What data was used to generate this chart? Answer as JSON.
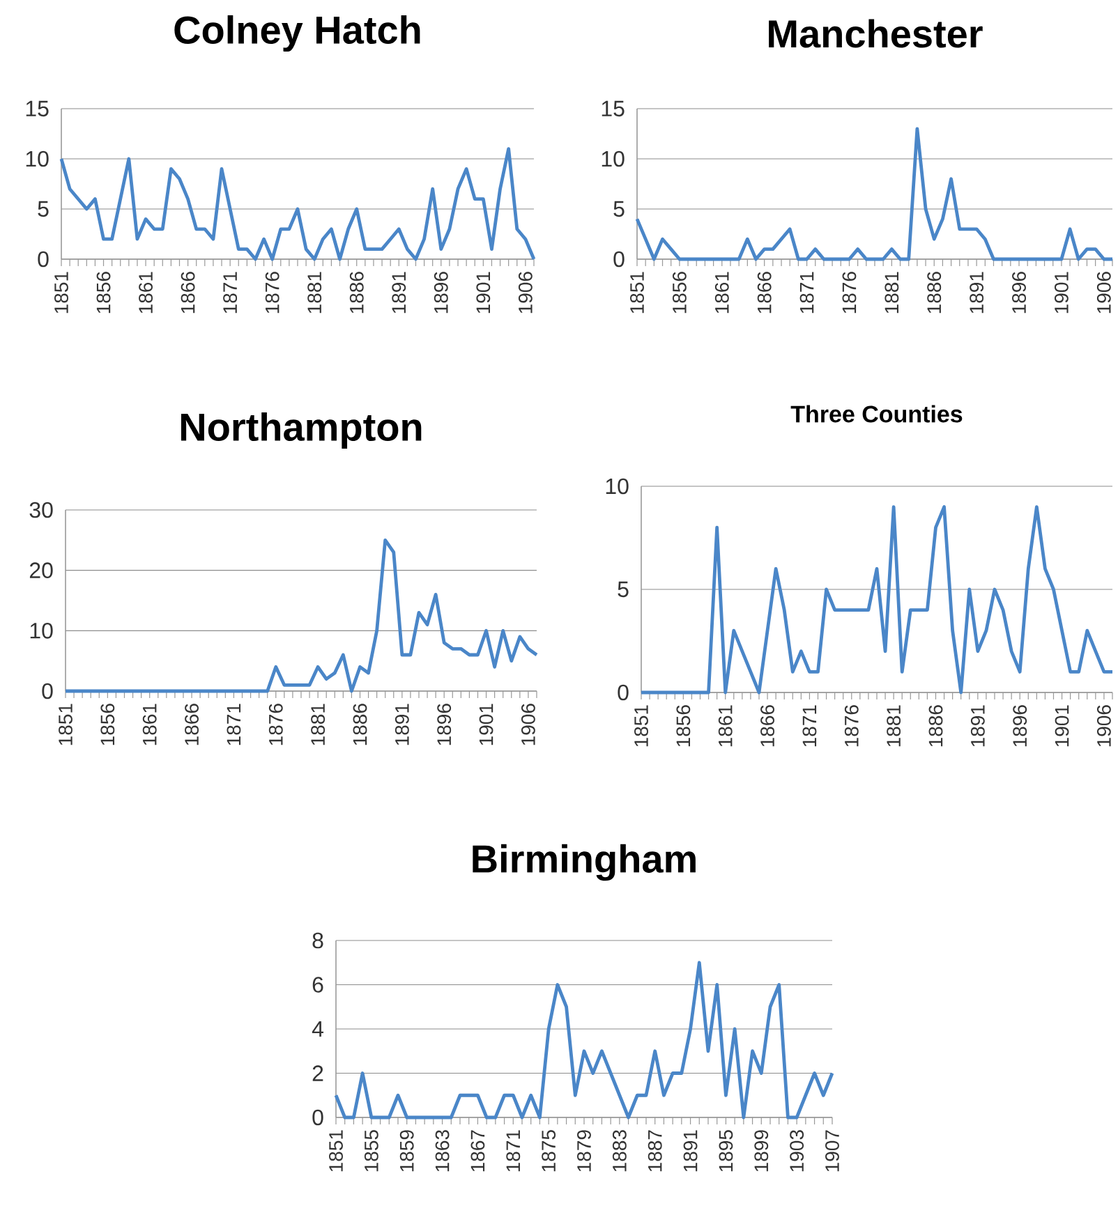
{
  "chart_data": [
    {
      "type": "line",
      "title": "Colney Hatch",
      "color": "#4a86c8",
      "grid": "y",
      "ylim": [
        0,
        15
      ],
      "yticks": [
        0,
        5,
        10,
        15
      ],
      "categories": [
        "1851",
        null,
        null,
        null,
        null,
        "1856",
        null,
        null,
        null,
        null,
        "1861",
        null,
        null,
        null,
        null,
        "1866",
        null,
        null,
        null,
        null,
        "1871",
        null,
        null,
        null,
        null,
        "1876",
        null,
        null,
        null,
        null,
        "1881",
        null,
        null,
        null,
        null,
        "1886",
        null,
        null,
        null,
        null,
        "1891",
        null,
        null,
        null,
        null,
        "1896",
        null,
        null,
        null,
        null,
        "1901",
        null,
        null,
        null,
        null,
        "1906",
        null
      ],
      "values": [
        10,
        7,
        6,
        5,
        6,
        2,
        2,
        6,
        10,
        2,
        4,
        3,
        3,
        9,
        8,
        6,
        3,
        3,
        2,
        9,
        5,
        1,
        1,
        0,
        2,
        0,
        3,
        3,
        5,
        1,
        0,
        2,
        3,
        0,
        3,
        5,
        1,
        1,
        1,
        2,
        3,
        1,
        0,
        2,
        7,
        1,
        3,
        7,
        9,
        6,
        6,
        1,
        7,
        11,
        3,
        2,
        0
      ]
    },
    {
      "type": "line",
      "title": "Manchester",
      "color": "#4a86c8",
      "grid": "y",
      "ylim": [
        0,
        15
      ],
      "yticks": [
        0,
        5,
        10,
        15
      ],
      "categories": [
        "1851",
        null,
        null,
        null,
        null,
        "1856",
        null,
        null,
        null,
        null,
        "1861",
        null,
        null,
        null,
        null,
        "1866",
        null,
        null,
        null,
        null,
        "1871",
        null,
        null,
        null,
        null,
        "1876",
        null,
        null,
        null,
        null,
        "1881",
        null,
        null,
        null,
        null,
        "1886",
        null,
        null,
        null,
        null,
        "1891",
        null,
        null,
        null,
        null,
        "1896",
        null,
        null,
        null,
        null,
        "1901",
        null,
        null,
        null,
        null,
        "1906",
        null
      ],
      "values": [
        4,
        2,
        0,
        2,
        1,
        0,
        0,
        0,
        0,
        0,
        0,
        0,
        0,
        2,
        0,
        1,
        1,
        2,
        3,
        0,
        0,
        1,
        0,
        0,
        0,
        0,
        1,
        0,
        0,
        0,
        1,
        0,
        0,
        13,
        5,
        2,
        4,
        8,
        3,
        3,
        3,
        2,
        0,
        0,
        0,
        0,
        0,
        0,
        0,
        0,
        0,
        3,
        0,
        1,
        1,
        0,
        0
      ]
    },
    {
      "type": "line",
      "title": "Northampton",
      "color": "#4a86c8",
      "grid": "y",
      "ylim": [
        0,
        30
      ],
      "yticks": [
        0,
        10,
        20,
        30
      ],
      "categories": [
        "1851",
        null,
        null,
        null,
        null,
        "1856",
        null,
        null,
        null,
        null,
        "1861",
        null,
        null,
        null,
        null,
        "1866",
        null,
        null,
        null,
        null,
        "1871",
        null,
        null,
        null,
        null,
        "1876",
        null,
        null,
        null,
        null,
        "1881",
        null,
        null,
        null,
        null,
        "1886",
        null,
        null,
        null,
        null,
        "1891",
        null,
        null,
        null,
        null,
        "1896",
        null,
        null,
        null,
        null,
        "1901",
        null,
        null,
        null,
        null,
        "1906",
        null
      ],
      "values": [
        0,
        0,
        0,
        0,
        0,
        0,
        0,
        0,
        0,
        0,
        0,
        0,
        0,
        0,
        0,
        0,
        0,
        0,
        0,
        0,
        0,
        0,
        0,
        0,
        0,
        4,
        1,
        1,
        1,
        1,
        4,
        2,
        3,
        6,
        0,
        4,
        3,
        10,
        25,
        23,
        6,
        6,
        13,
        11,
        16,
        8,
        7,
        7,
        6,
        6,
        10,
        4,
        10,
        5,
        9,
        7,
        6
      ]
    },
    {
      "type": "line",
      "title": "Three Counties",
      "color": "#4a86c8",
      "grid": "y",
      "ylim": [
        0,
        10
      ],
      "yticks": [
        0,
        5,
        10
      ],
      "categories": [
        "1851",
        null,
        null,
        null,
        null,
        "1856",
        null,
        null,
        null,
        null,
        "1861",
        null,
        null,
        null,
        null,
        "1866",
        null,
        null,
        null,
        null,
        "1871",
        null,
        null,
        null,
        null,
        "1876",
        null,
        null,
        null,
        null,
        "1881",
        null,
        null,
        null,
        null,
        "1886",
        null,
        null,
        null,
        null,
        "1891",
        null,
        null,
        null,
        null,
        "1896",
        null,
        null,
        null,
        null,
        "1901",
        null,
        null,
        null,
        null,
        "1906",
        null
      ],
      "values": [
        0,
        0,
        0,
        0,
        0,
        0,
        0,
        0,
        0,
        8,
        0,
        3,
        2,
        1,
        0,
        3,
        6,
        4,
        1,
        2,
        1,
        1,
        5,
        4,
        4,
        4,
        4,
        4,
        6,
        2,
        9,
        1,
        4,
        4,
        4,
        8,
        9,
        3,
        0,
        5,
        2,
        3,
        5,
        4,
        2,
        1,
        6,
        9,
        6,
        5,
        3,
        1,
        1,
        3,
        2,
        1,
        1
      ]
    },
    {
      "type": "line",
      "title": "Birmingham",
      "color": "#4a86c8",
      "grid": "y",
      "ylim": [
        0,
        8
      ],
      "yticks": [
        0,
        2,
        4,
        6,
        8
      ],
      "categories": [
        "1851",
        null,
        null,
        null,
        "1855",
        null,
        null,
        null,
        "1859",
        null,
        null,
        null,
        "1863",
        null,
        null,
        null,
        "1867",
        null,
        null,
        null,
        "1871",
        null,
        null,
        null,
        "1875",
        null,
        null,
        null,
        "1879",
        null,
        null,
        null,
        "1883",
        null,
        null,
        null,
        "1887",
        null,
        null,
        null,
        "1891",
        null,
        null,
        null,
        "1895",
        null,
        null,
        null,
        "1899",
        null,
        null,
        null,
        "1903",
        null,
        null,
        null,
        "1907"
      ],
      "values": [
        1,
        0,
        0,
        2,
        0,
        0,
        0,
        1,
        0,
        0,
        0,
        0,
        0,
        0,
        1,
        1,
        1,
        0,
        0,
        1,
        1,
        0,
        1,
        0,
        4,
        6,
        5,
        1,
        3,
        2,
        3,
        2,
        1,
        0,
        1,
        1,
        3,
        1,
        2,
        2,
        4,
        7,
        3,
        6,
        1,
        4,
        0,
        3,
        2,
        5,
        6,
        0,
        0,
        1,
        2,
        1,
        2
      ]
    }
  ]
}
